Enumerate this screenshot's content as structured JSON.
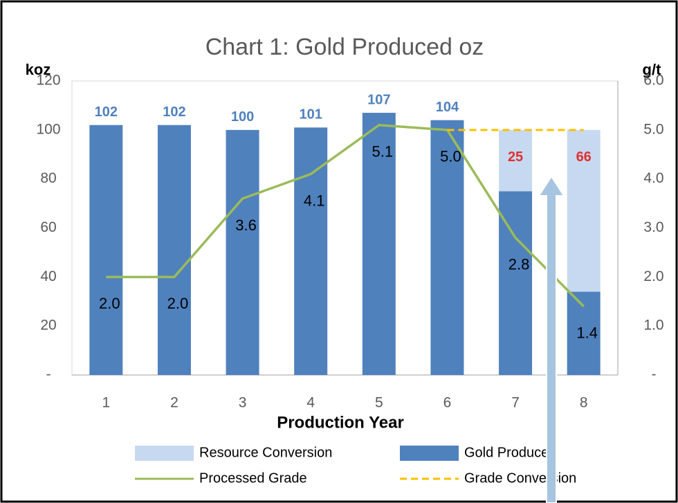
{
  "chart_data": {
    "type": "bar",
    "title": "Chart 1: Gold Produced oz",
    "y_label": "koz",
    "y2_label": "g/t",
    "x_label": "Production Year",
    "categories": [
      "1",
      "2",
      "3",
      "4",
      "5",
      "6",
      "7",
      "8"
    ],
    "series": [
      {
        "name": "Resource Conversion",
        "type": "bar",
        "color": "#c6d9f1",
        "label_color": "#e03030",
        "values": [
          null,
          null,
          null,
          null,
          null,
          null,
          25,
          66
        ]
      },
      {
        "name": "Gold Produced",
        "type": "bar",
        "color": "#4f81bd",
        "label_color": "#4f81bd",
        "values": [
          102,
          102,
          100,
          101,
          107,
          104,
          75,
          34
        ]
      },
      {
        "name": "Processed Grade",
        "type": "line",
        "axis": "y2",
        "color": "#9bbb59",
        "values": [
          2.0,
          2.0,
          3.6,
          4.1,
          5.1,
          5.0,
          2.8,
          1.4
        ],
        "value_labels": [
          "2.0",
          "2.0",
          "3.6",
          "4.1",
          "5.1",
          "5.0",
          "2.8",
          "1.4"
        ]
      },
      {
        "name": "Grade Conversion",
        "type": "line",
        "axis": "y2",
        "color": "#ffc000",
        "dashed": true,
        "values": [
          null,
          null,
          null,
          null,
          null,
          5.0,
          5.0,
          5.0
        ]
      }
    ],
    "ylim": [
      0,
      120
    ],
    "yticks": [
      {
        "value": 0,
        "label": "-"
      },
      20,
      40,
      60,
      80,
      100,
      120
    ],
    "y2lim": [
      0,
      6
    ],
    "y2ticks": [
      {
        "value": 0,
        "label": "-"
      },
      {
        "value": 1,
        "label": "1.0"
      },
      {
        "value": 2,
        "label": "2.0"
      },
      {
        "value": 3,
        "label": "3.0"
      },
      {
        "value": 4,
        "label": "4.0"
      },
      {
        "value": 5,
        "label": "5.0"
      },
      {
        "value": 6,
        "label": "6.0"
      }
    ],
    "legend": "bottom"
  }
}
